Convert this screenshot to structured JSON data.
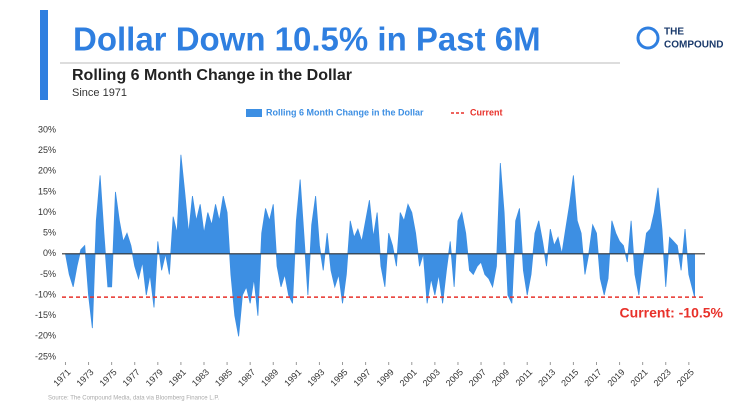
{
  "chart_data": {
    "type": "area",
    "title": "Dollar Down 10.5% in Past 6M",
    "subtitle": "Rolling 6 Month Change in the Dollar",
    "subtitle2": "Since 1971",
    "source": "Source: The Compound Media, data via Bloomberg Finance L.P.",
    "logo": {
      "line1": "THE",
      "line2": "COMPOUND"
    },
    "x": [
      1971,
      1971.33,
      1971.67,
      1972,
      1972.33,
      1972.67,
      1973,
      1973.33,
      1973.67,
      1974,
      1974.33,
      1974.67,
      1975,
      1975.33,
      1975.67,
      1976,
      1976.33,
      1976.67,
      1977,
      1977.33,
      1977.67,
      1978,
      1978.33,
      1978.67,
      1979,
      1979.33,
      1979.67,
      1980,
      1980.33,
      1980.67,
      1981,
      1981.33,
      1981.67,
      1982,
      1982.33,
      1982.67,
      1983,
      1983.33,
      1983.67,
      1984,
      1984.33,
      1984.67,
      1985,
      1985.33,
      1985.67,
      1986,
      1986.33,
      1986.67,
      1987,
      1987.33,
      1987.67,
      1988,
      1988.33,
      1988.67,
      1989,
      1989.33,
      1989.67,
      1990,
      1990.33,
      1990.67,
      1991,
      1991.33,
      1991.67,
      1992,
      1992.33,
      1992.67,
      1993,
      1993.33,
      1993.67,
      1994,
      1994.33,
      1994.67,
      1995,
      1995.33,
      1995.67,
      1996,
      1996.33,
      1996.67,
      1997,
      1997.33,
      1997.67,
      1998,
      1998.33,
      1998.67,
      1999,
      1999.33,
      1999.67,
      2000,
      2000.33,
      2000.67,
      2001,
      2001.33,
      2001.67,
      2002,
      2002.33,
      2002.67,
      2003,
      2003.33,
      2003.67,
      2004,
      2004.33,
      2004.67,
      2005,
      2005.33,
      2005.67,
      2006,
      2006.33,
      2006.67,
      2007,
      2007.33,
      2007.67,
      2008,
      2008.33,
      2008.67,
      2009,
      2009.33,
      2009.67,
      2010,
      2010.33,
      2010.67,
      2011,
      2011.33,
      2011.67,
      2012,
      2012.33,
      2012.67,
      2013,
      2013.33,
      2013.67,
      2014,
      2014.33,
      2014.67,
      2015,
      2015.33,
      2015.67,
      2016,
      2016.33,
      2016.67,
      2017,
      2017.33,
      2017.67,
      2018,
      2018.33,
      2018.67,
      2019,
      2019.33,
      2019.67,
      2020,
      2020.33,
      2020.67,
      2021,
      2021.33,
      2021.67,
      2022,
      2022.33,
      2022.67,
      2023,
      2023.33,
      2023.67,
      2024,
      2024.33,
      2024.67,
      2025,
      2025.5
    ],
    "series": [
      {
        "name": "Rolling 6 Month Change in the Dollar",
        "color": "#3d8fe3",
        "values": [
          0,
          -5,
          -8,
          -3,
          1,
          2,
          -10,
          -18,
          8,
          19,
          5,
          -8,
          -8,
          15,
          8,
          3,
          5,
          2,
          -3,
          -6,
          -2,
          -10,
          -5,
          -13,
          3,
          -4,
          0,
          -5,
          9,
          5,
          24,
          15,
          5,
          14,
          8,
          12,
          5,
          10,
          7,
          12,
          8,
          14,
          10,
          -5,
          -15,
          -20,
          -10,
          -8,
          -12,
          -6,
          -15,
          5,
          11,
          8,
          12,
          -3,
          -8,
          -5,
          -10,
          -12,
          8,
          18,
          4,
          -10,
          7,
          14,
          2,
          -4,
          5,
          -4,
          -8,
          -5,
          -12,
          -5,
          8,
          4,
          6,
          3,
          8,
          13,
          4,
          10,
          -3,
          -8,
          5,
          2,
          -3,
          10,
          8,
          12,
          10,
          5,
          -3,
          0,
          -12,
          -6,
          -10,
          -5,
          -12,
          -4,
          3,
          -8,
          8,
          10,
          5,
          -4,
          -5,
          -3,
          -2,
          -5,
          -6,
          -8,
          -3,
          22,
          10,
          -10,
          -12,
          8,
          11,
          -4,
          -10,
          -5,
          5,
          8,
          3,
          -3,
          6,
          2,
          4,
          0,
          6,
          12,
          19,
          8,
          5,
          -5,
          0,
          7,
          5,
          -6,
          -10,
          -6,
          8,
          5,
          3,
          2,
          -2,
          8,
          -5,
          -10,
          -2,
          5,
          6,
          10,
          16,
          6,
          -8,
          4,
          3,
          2,
          -4,
          6,
          -5,
          -10.5
        ]
      }
    ],
    "reference_line": {
      "name": "Current",
      "value": -10.5,
      "color": "#e8312a",
      "label": "Current: -10.5%"
    },
    "xlim": [
      1970.7,
      2026.4
    ],
    "xticks": [
      1971,
      1973,
      1975,
      1977,
      1979,
      1981,
      1983,
      1985,
      1987,
      1989,
      1991,
      1993,
      1995,
      1997,
      1999,
      2001,
      2003,
      2005,
      2007,
      2009,
      2011,
      2013,
      2015,
      2017,
      2019,
      2021,
      2023,
      2025
    ],
    "ylim": [
      -25,
      30
    ],
    "yticks": [
      {
        "value": -25,
        "label": "-25%"
      },
      {
        "value": -20,
        "label": "-20%"
      },
      {
        "value": -15,
        "label": "-15%"
      },
      {
        "value": -10,
        "label": "-10%"
      },
      {
        "value": -5,
        "label": "-5%"
      },
      {
        "value": 0,
        "label": "0%"
      },
      {
        "value": 5,
        "label": "5%"
      },
      {
        "value": 10,
        "label": "10%"
      },
      {
        "value": 15,
        "label": "15%"
      },
      {
        "value": 20,
        "label": "20%"
      },
      {
        "value": 25,
        "label": "25%"
      },
      {
        "value": 30,
        "label": "30%"
      }
    ]
  }
}
